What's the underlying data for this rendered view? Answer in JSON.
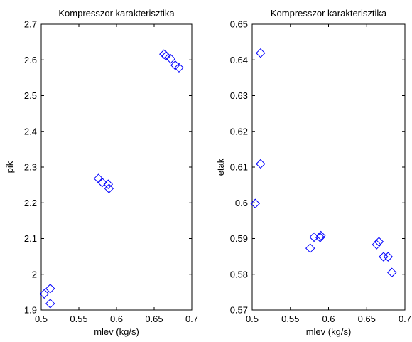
{
  "chart_data": [
    {
      "type": "scatter",
      "title": "Kompresszor karakterisztika",
      "xlabel": "mlev (kg/s)",
      "ylabel": "pik",
      "xlim": [
        0.5,
        0.7
      ],
      "ylim": [
        1.9,
        2.7
      ],
      "xticks": [
        "0.5",
        "0.55",
        "0.6",
        "0.65",
        "0.7"
      ],
      "yticks": [
        "1.9",
        "2",
        "2.1",
        "2.2",
        "2.3",
        "2.4",
        "2.5",
        "2.6",
        "2.7"
      ],
      "marker": "diamond",
      "color": "#0000ff",
      "grid": false,
      "points": [
        {
          "x": 0.504,
          "y": 1.945
        },
        {
          "x": 0.512,
          "y": 1.96
        },
        {
          "x": 0.512,
          "y": 1.918
        },
        {
          "x": 0.576,
          "y": 2.268
        },
        {
          "x": 0.581,
          "y": 2.257
        },
        {
          "x": 0.589,
          "y": 2.252
        },
        {
          "x": 0.59,
          "y": 2.24
        },
        {
          "x": 0.663,
          "y": 2.616
        },
        {
          "x": 0.666,
          "y": 2.611
        },
        {
          "x": 0.672,
          "y": 2.603
        },
        {
          "x": 0.678,
          "y": 2.585
        },
        {
          "x": 0.683,
          "y": 2.578
        }
      ]
    },
    {
      "type": "scatter",
      "title": "Kompresszor karakterisztika",
      "xlabel": "mlev (kg/s)",
      "ylabel": "etak",
      "xlim": [
        0.5,
        0.7
      ],
      "ylim": [
        0.57,
        0.65
      ],
      "xticks": [
        "0.5",
        "0.55",
        "0.6",
        "0.65",
        "0.7"
      ],
      "yticks": [
        "0.57",
        "0.58",
        "0.59",
        "0.6",
        "0.61",
        "0.62",
        "0.63",
        "0.64",
        "0.65"
      ],
      "marker": "diamond",
      "color": "#0000ff",
      "grid": false,
      "points": [
        {
          "x": 0.504,
          "y": 0.5998
        },
        {
          "x": 0.511,
          "y": 0.6109
        },
        {
          "x": 0.511,
          "y": 0.6419
        },
        {
          "x": 0.576,
          "y": 0.5873
        },
        {
          "x": 0.581,
          "y": 0.5904
        },
        {
          "x": 0.589,
          "y": 0.5903
        },
        {
          "x": 0.59,
          "y": 0.5908
        },
        {
          "x": 0.663,
          "y": 0.5883
        },
        {
          "x": 0.666,
          "y": 0.5891
        },
        {
          "x": 0.672,
          "y": 0.5849
        },
        {
          "x": 0.678,
          "y": 0.5849
        },
        {
          "x": 0.683,
          "y": 0.5805
        }
      ]
    }
  ]
}
